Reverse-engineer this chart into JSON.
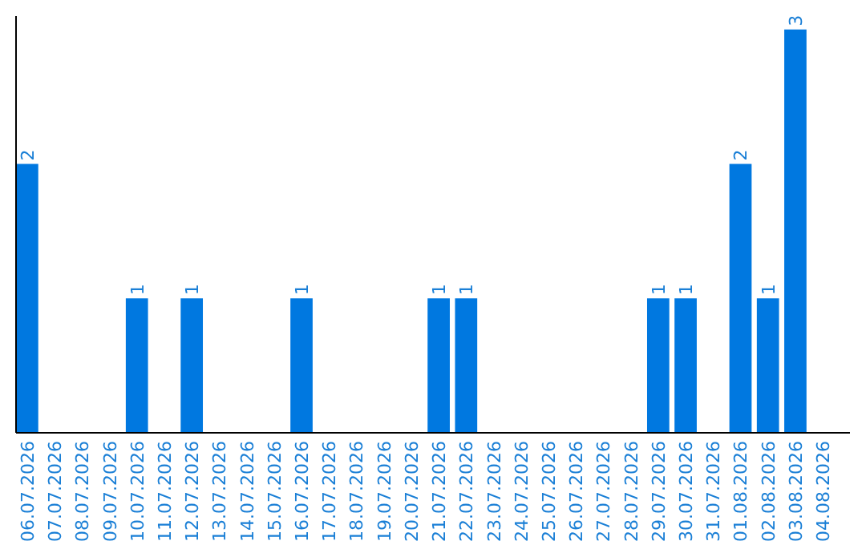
{
  "chart_data": {
    "type": "bar",
    "categories": [
      "06.07.2026",
      "07.07.2026",
      "08.07.2026",
      "09.07.2026",
      "10.07.2026",
      "11.07.2026",
      "12.07.2026",
      "13.07.2026",
      "14.07.2026",
      "15.07.2026",
      "16.07.2026",
      "17.07.2026",
      "18.07.2026",
      "19.07.2026",
      "20.07.2026",
      "21.07.2026",
      "22.07.2026",
      "23.07.2026",
      "24.07.2026",
      "25.07.2026",
      "26.07.2026",
      "27.07.2026",
      "28.07.2026",
      "29.07.2026",
      "30.07.2026",
      "31.07.2026",
      "01.08.2026",
      "02.08.2026",
      "03.08.2026",
      "04.08.2026"
    ],
    "values": [
      2,
      0,
      0,
      0,
      1,
      0,
      1,
      0,
      0,
      0,
      1,
      0,
      0,
      0,
      0,
      1,
      1,
      0,
      0,
      0,
      0,
      0,
      0,
      1,
      1,
      0,
      2,
      1,
      3,
      0
    ],
    "value_labels": [
      "2",
      null,
      null,
      null,
      "1",
      null,
      "1",
      null,
      null,
      null,
      "1",
      null,
      null,
      null,
      null,
      "1",
      "1",
      null,
      null,
      null,
      null,
      null,
      null,
      "1",
      "1",
      null,
      "2",
      "1",
      "3",
      null
    ],
    "color": "#0078e0",
    "ylim": [
      0,
      3.1
    ],
    "tick_labels": "x"
  }
}
